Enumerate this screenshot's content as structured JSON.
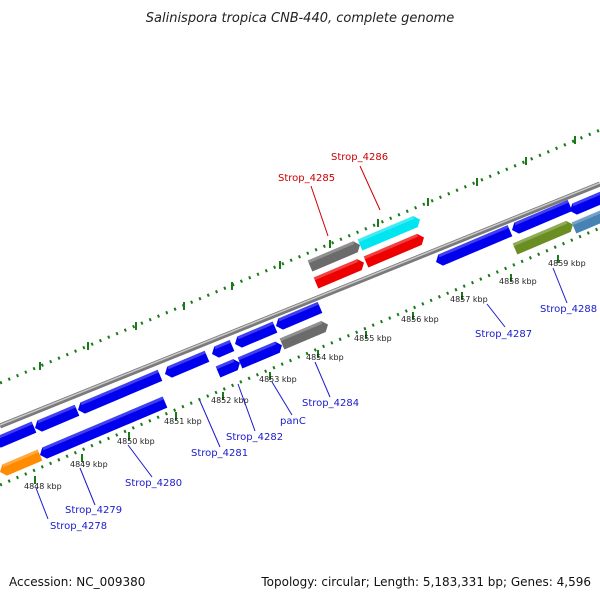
{
  "title": "Salinispora tropica CNB-440, complete genome",
  "footer": {
    "accession": "Accession: NC_009380",
    "summary": "Topology: circular; Length: 5,183,331 bp; Genes: 4,596"
  },
  "colors": {
    "forward_gene": "#0000ee",
    "reverse_gene": "#0000ee",
    "backbone": "#8a8a8a",
    "tick": "#1a7a1a",
    "label_blue": "#1a1acc",
    "label_red": "#cc0000",
    "pseudo_gray": "#6b6b6b",
    "highlight_cyan": "#00e5f0",
    "highlight_red": "#ee0000",
    "olive": "#6b8e23",
    "steel": "#4682b4",
    "orange": "#ff8c00"
  },
  "kbp_labels": [
    "4848 kbp",
    "4849 kbp",
    "4850 kbp",
    "4851 kbp",
    "4852 kbp",
    "4853 kbp",
    "4854 kbp",
    "4855 kbp",
    "4856 kbp",
    "4857 kbp",
    "4858 kbp",
    "4859 kbp"
  ],
  "gene_labels": [
    {
      "text": "Strop_4278",
      "color": "blue"
    },
    {
      "text": "Strop_4279",
      "color": "blue"
    },
    {
      "text": "Strop_4280",
      "color": "blue"
    },
    {
      "text": "Strop_4281",
      "color": "blue"
    },
    {
      "text": "Strop_4282",
      "color": "blue"
    },
    {
      "text": "panC",
      "color": "blue"
    },
    {
      "text": "Strop_4284",
      "color": "blue"
    },
    {
      "text": "Strop_4285",
      "color": "red"
    },
    {
      "text": "Strop_4286",
      "color": "red"
    },
    {
      "text": "Strop_4287",
      "color": "blue"
    },
    {
      "text": "Strop_4288",
      "color": "blue"
    }
  ]
}
